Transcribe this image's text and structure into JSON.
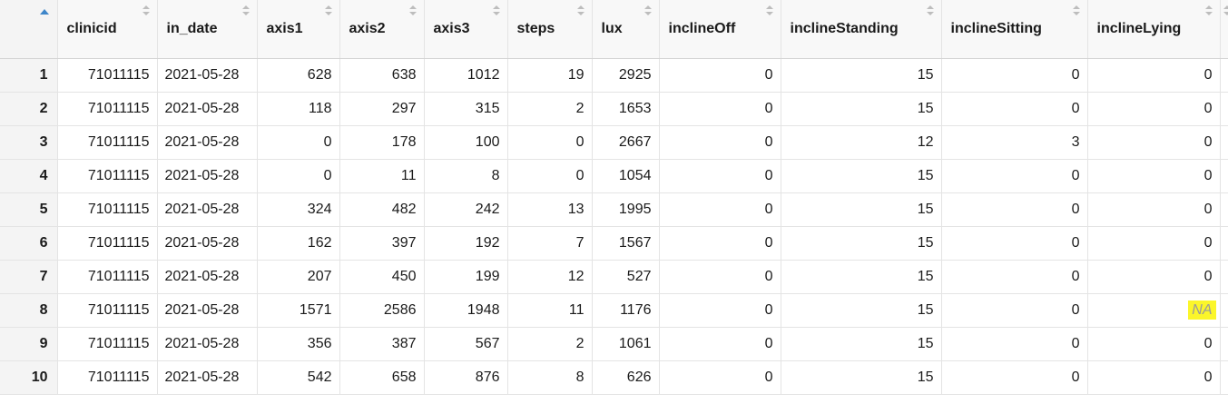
{
  "table": {
    "sort_column": "index",
    "sort_direction": "ascending",
    "columns": [
      "clinicid",
      "in_date",
      "axis1",
      "axis2",
      "axis3",
      "steps",
      "lux",
      "inclineOff",
      "inclineStanding",
      "inclineSitting",
      "inclineLying"
    ],
    "rows": [
      {
        "index": "1",
        "cells": [
          "71011115",
          "2021-05-28",
          "628",
          "638",
          "1012",
          "19",
          "2925",
          "0",
          "15",
          "0",
          "0"
        ]
      },
      {
        "index": "2",
        "cells": [
          "71011115",
          "2021-05-28",
          "118",
          "297",
          "315",
          "2",
          "1653",
          "0",
          "15",
          "0",
          "0"
        ]
      },
      {
        "index": "3",
        "cells": [
          "71011115",
          "2021-05-28",
          "0",
          "178",
          "100",
          "0",
          "2667",
          "0",
          "12",
          "3",
          "0"
        ]
      },
      {
        "index": "4",
        "cells": [
          "71011115",
          "2021-05-28",
          "0",
          "11",
          "8",
          "0",
          "1054",
          "0",
          "15",
          "0",
          "0"
        ]
      },
      {
        "index": "5",
        "cells": [
          "71011115",
          "2021-05-28",
          "324",
          "482",
          "242",
          "13",
          "1995",
          "0",
          "15",
          "0",
          "0"
        ]
      },
      {
        "index": "6",
        "cells": [
          "71011115",
          "2021-05-28",
          "162",
          "397",
          "192",
          "7",
          "1567",
          "0",
          "15",
          "0",
          "0"
        ]
      },
      {
        "index": "7",
        "cells": [
          "71011115",
          "2021-05-28",
          "207",
          "450",
          "199",
          "12",
          "527",
          "0",
          "15",
          "0",
          "0"
        ]
      },
      {
        "index": "8",
        "cells": [
          "71011115",
          "2021-05-28",
          "1571",
          "2586",
          "1948",
          "11",
          "1176",
          "0",
          "15",
          "0",
          "NA"
        ]
      },
      {
        "index": "9",
        "cells": [
          "71011115",
          "2021-05-28",
          "356",
          "387",
          "567",
          "2",
          "1061",
          "0",
          "15",
          "0",
          "0"
        ]
      },
      {
        "index": "10",
        "cells": [
          "71011115",
          "2021-05-28",
          "542",
          "658",
          "876",
          "8",
          "626",
          "0",
          "15",
          "0",
          "0"
        ]
      }
    ]
  },
  "colors": {
    "header_bg": "#f8f8f8",
    "index_bg": "#f4f4f4",
    "grid_line": "#e4e4e4",
    "sort_accent": "#3e86c9",
    "na_highlight": "#fbf62a",
    "na_text": "#9a9a9a"
  },
  "icons": {
    "sort_ascending": "sort-ascending-icon",
    "sort_toggle": "sort-toggle-icon"
  }
}
